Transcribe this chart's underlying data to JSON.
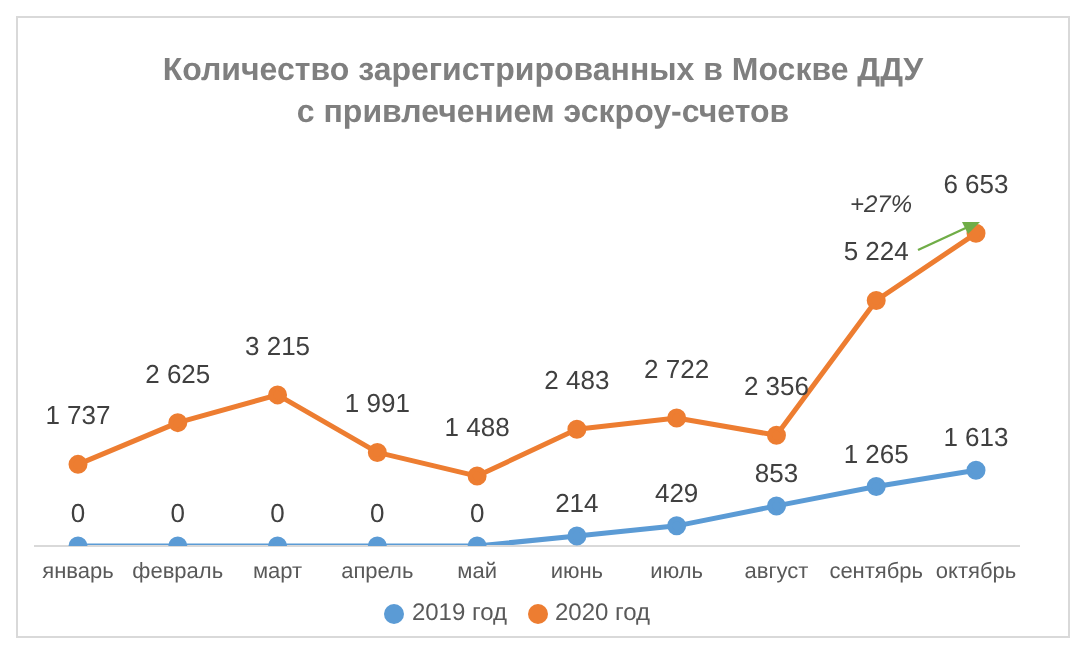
{
  "chart_data": {
    "type": "line",
    "title": "Количество зарегистрированных в Москве ДДУ\nс привлечением эскроу-счетов",
    "categories": [
      "январь",
      "февраль",
      "март",
      "апрель",
      "май",
      "июнь",
      "июль",
      "август",
      "сентябрь",
      "октябрь"
    ],
    "series": [
      {
        "name": "2019 год",
        "color": "#5b9bd5",
        "values": [
          0,
          0,
          0,
          0,
          0,
          214,
          429,
          853,
          1265,
          1613
        ]
      },
      {
        "name": "2020 год",
        "color": "#ed7d31",
        "values": [
          1737,
          2625,
          3215,
          1991,
          1488,
          2483,
          2722,
          2356,
          5224,
          6653
        ]
      }
    ],
    "tick_labels": "x",
    "legend": "bottom",
    "marker": "circle",
    "line_style": "solid",
    "data_labels": true,
    "annotations": [
      "+27%"
    ]
  }
}
